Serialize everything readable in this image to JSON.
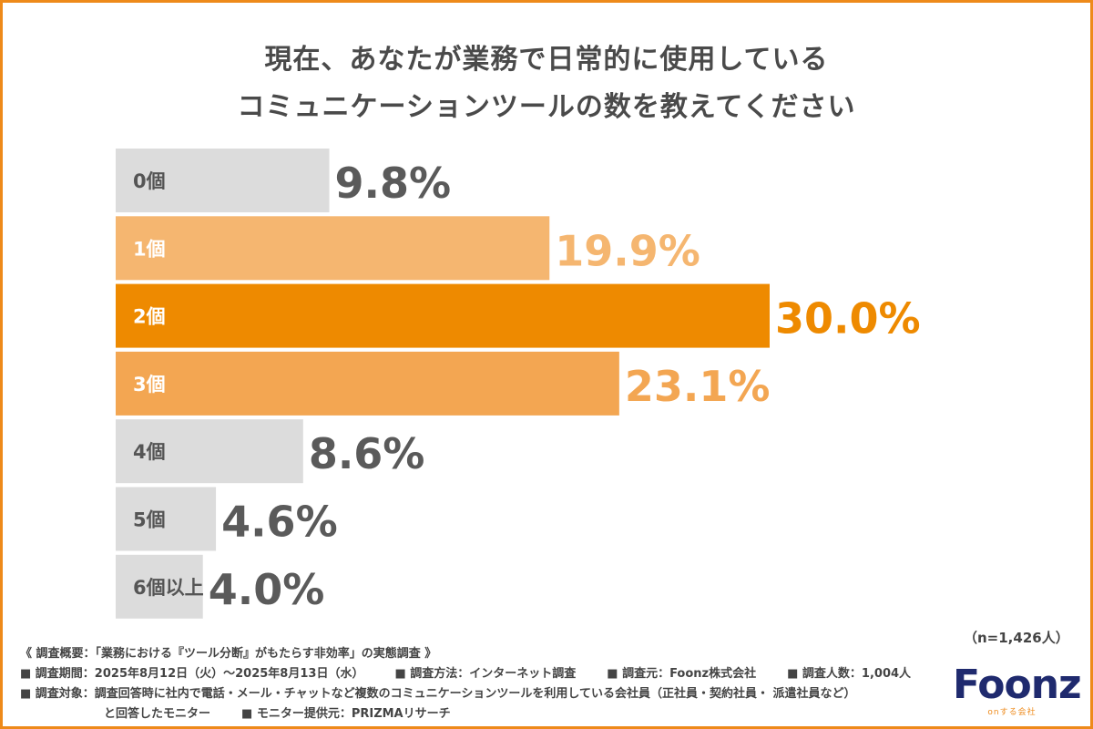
{
  "title_lines": [
    "現在、あなたが業務で日常的に使用している",
    "コミュニケーションツールの数を教えてください"
  ],
  "n_label": "（n=1,426人）",
  "notes": {
    "overview": "《 調査概要：「業務における『ツール分断』がもたらす非効率」の実態調査 》",
    "period": "■ 調査期間：2025年8月12日（火）～2025年8月13日（水）",
    "method": "■ 調査方法：インターネット調査",
    "source": "■ 調査元：Foonz株式会社",
    "count": "■ 調査人数：1,004人",
    "target": "■ 調査対象：調査回答時に社内で電話・メール・チャットなど複数のコミュニケーションツールを利用している会社員（正社員・契約社員・ 派遣社員など）",
    "target2": "と回答したモニター",
    "provider": "■ モニター提供元：PRIZMAリサーチ"
  },
  "logo": {
    "name": "Foonz",
    "tagline": "onする会社"
  },
  "colors": {
    "gray": "#dcdcdc",
    "light_orange": "#f5b670",
    "mid_orange": "#f3a652",
    "dark_orange": "#ee8a00",
    "gray_text": "#5a5a5a",
    "orange_text": "#ee8a00",
    "light_orange_text": "#f5b670",
    "frame": "#ee8a1a"
  },
  "chart_data": {
    "type": "bar",
    "orientation": "horizontal",
    "categories": [
      "0個",
      "1個",
      "2個",
      "3個",
      "4個",
      "5個",
      "6個以上"
    ],
    "values": [
      9.8,
      19.9,
      30.0,
      23.1,
      8.6,
      4.6,
      4.0
    ],
    "value_labels": [
      "9.8%",
      "19.9%",
      "30.0%",
      "23.1%",
      "8.6%",
      "4.6%",
      "4.0%"
    ],
    "bar_colors": [
      "gray",
      "light_orange",
      "dark_orange",
      "mid_orange",
      "gray",
      "gray",
      "gray"
    ],
    "xlim": [
      0,
      30
    ]
  }
}
